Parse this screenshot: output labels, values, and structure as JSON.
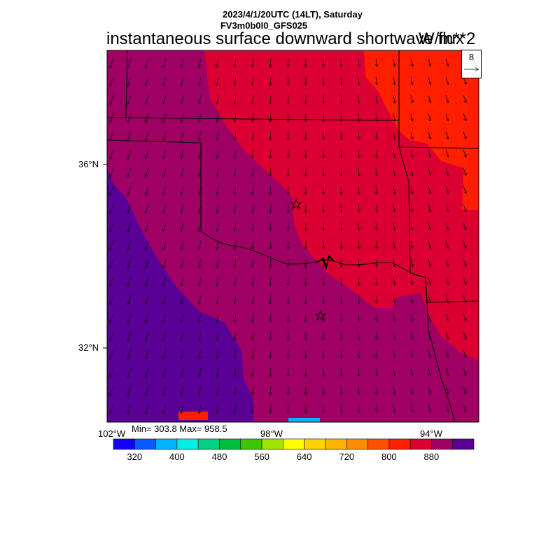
{
  "header": {
    "date_line": "2023/4/1/20UTC (14LT), Saturday",
    "model_line": "FV3m0b0l0_GFS025",
    "title": "instantaneous surface downward shortwave flux",
    "units": "W/m**2"
  },
  "vector_reference": {
    "value": "8"
  },
  "axes": {
    "lat_labels": [
      "36°N",
      "32°N"
    ],
    "lon_labels": [
      "102°W",
      "98°W",
      "94°W"
    ]
  },
  "stats": {
    "text": "Min= 303.8 Max= 958.5"
  },
  "colorbar": {
    "colors": [
      "#1400ff",
      "#0a5aff",
      "#00b4ff",
      "#00f0e6",
      "#00d282",
      "#00be3c",
      "#3cc800",
      "#a0e600",
      "#ffff00",
      "#ffd200",
      "#ffb400",
      "#ff8c00",
      "#ff5000",
      "#ff1e00",
      "#dc0032",
      "#a00064",
      "#5a0096"
    ],
    "tick_labels": [
      "320",
      "400",
      "480",
      "560",
      "640",
      "720",
      "800",
      "880"
    ]
  },
  "map_colors": {
    "purple_dark": "#5a0096",
    "purple_mid": "#a00064",
    "red_mid": "#dc0032",
    "red_bright": "#ff1e00"
  }
}
